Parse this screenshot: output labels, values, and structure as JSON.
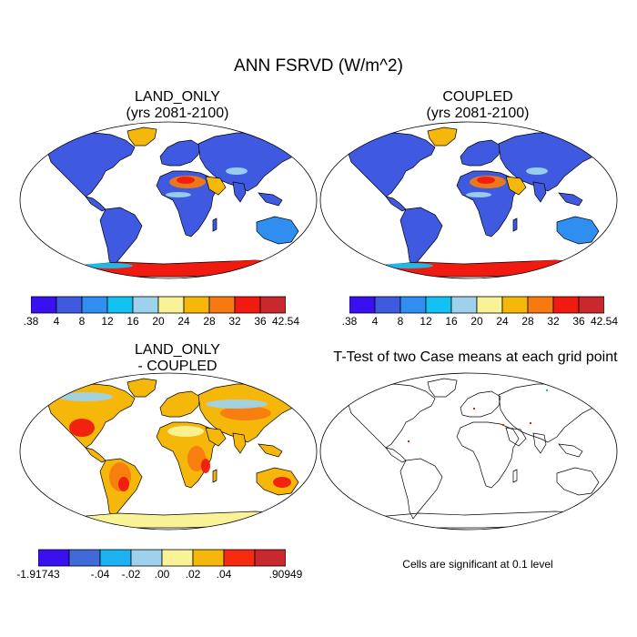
{
  "figure": {
    "title": "ANN FSRVD (W/m^2)"
  },
  "panels": [
    {
      "id": "land_only",
      "title_line1": "LAND_ONLY",
      "title_line2": "(yrs 2081-2100)"
    },
    {
      "id": "coupled",
      "title_line1": "COUPLED",
      "title_line2": "(yrs 2081-2100)"
    },
    {
      "id": "difference",
      "title_line1": "LAND_ONLY",
      "title_line2": "- COUPLED"
    },
    {
      "id": "ttest",
      "title_line1": "T-Test of two Case means at each grid point",
      "title_line2": ""
    }
  ],
  "colorbars": {
    "absolute": {
      "colors": [
        "#3a10f0",
        "#3f5ae0",
        "#2f8ef0",
        "#12c2f2",
        "#9ed2ec",
        "#f9f296",
        "#f5b80a",
        "#f77a10",
        "#f01a10",
        "#c8282e"
      ],
      "labels": [
        ".38",
        "4",
        "8",
        "12",
        "16",
        "20",
        "24",
        "28",
        "32",
        "36",
        "42.54"
      ]
    },
    "difference": {
      "colors": [
        "#3a10f0",
        "#3f6ad8",
        "#1ab2f0",
        "#9ed2ec",
        "#f9f296",
        "#f5b80a",
        "#f72a10",
        "#c8282e"
      ],
      "labels": [
        "-1.91743",
        "-.04",
        "-.02",
        ".00",
        ".02",
        ".04",
        ".90949"
      ]
    }
  },
  "significance_note": "Cells are significant at 0.1 level",
  "map_fields": {
    "land_only": {
      "default": "#3f5ae0",
      "sahara": "#f77a10",
      "sahara_core": "#f01a10",
      "arabia": "#f5b80a",
      "antarctica": "#f01a10",
      "antarctica_edge": "#12c2f2",
      "greenland": "#f5b80a",
      "tibet": "#9ed2ec",
      "australia": "#2f8ef0",
      "sahel": "#9ed2ec"
    },
    "coupled": {
      "default": "#3f5ae0",
      "sahara": "#f77a10",
      "sahara_core": "#f01a10",
      "arabia": "#f5b80a",
      "antarctica": "#f01a10",
      "antarctica_edge": "#12c2f2",
      "greenland": "#f5b80a",
      "tibet": "#9ed2ec",
      "australia": "#2f8ef0",
      "sahel": "#9ed2ec"
    },
    "difference": {
      "default": "#f5b80a",
      "warm": "#f77a10",
      "hot": "#f01a10",
      "cool": "#9ed2ec",
      "neutral": "#f9f296",
      "antarctica": "#f9f296"
    }
  }
}
